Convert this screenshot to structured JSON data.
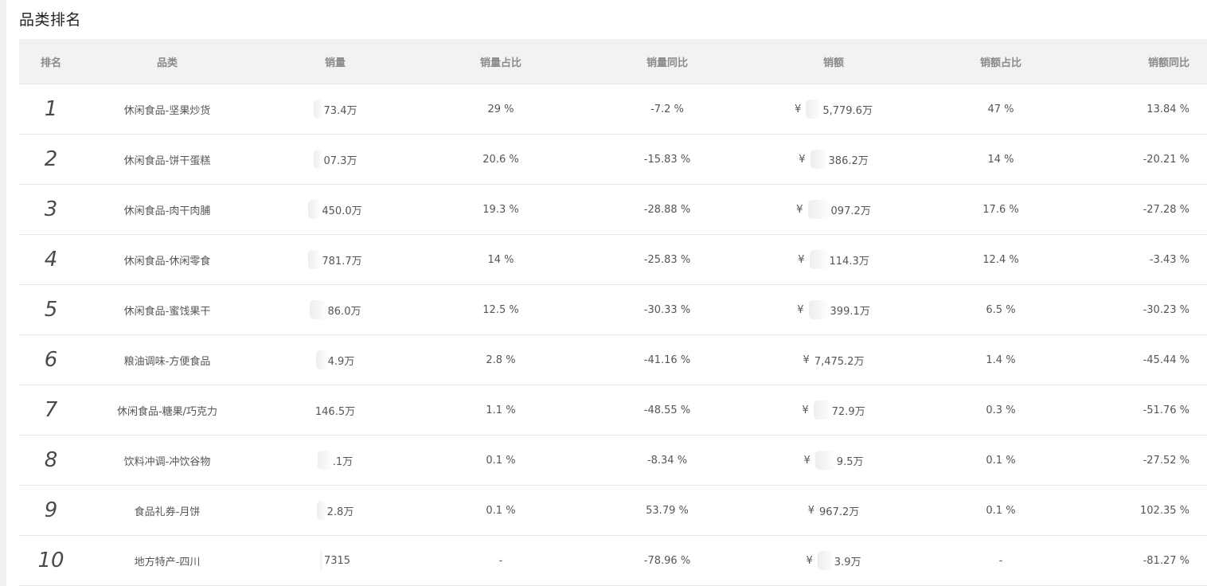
{
  "page": {
    "title": "品类排名"
  },
  "table": {
    "headers": {
      "rank": "排名",
      "category": "品类",
      "sales_volume": "销量",
      "volume_share": "销量占比",
      "volume_yoy": "销量同比",
      "sales_amount": "销额",
      "amount_share": "销额占比",
      "amount_yoy": "销额同比"
    },
    "currency_symbol": "¥",
    "rows": [
      {
        "rank": "1",
        "category": "休闲食品-坚果炒货",
        "volume": "73.4万",
        "volume_share": "29 %",
        "volume_yoy": "-7.2 %",
        "amount": "5,779.6万",
        "amount_share": "47 %",
        "amount_yoy": "13.84 %"
      },
      {
        "rank": "2",
        "category": "休闲食品-饼干蛋糕",
        "volume": "07.3万",
        "volume_share": "20.6 %",
        "volume_yoy": "-15.83 %",
        "amount": "386.2万",
        "amount_share": "14 %",
        "amount_yoy": "-20.21 %"
      },
      {
        "rank": "3",
        "category": "休闲食品-肉干肉脯",
        "volume": "450.0万",
        "volume_share": "19.3 %",
        "volume_yoy": "-28.88 %",
        "amount": "097.2万",
        "amount_share": "17.6 %",
        "amount_yoy": "-27.28 %"
      },
      {
        "rank": "4",
        "category": "休闲食品-休闲零食",
        "volume": "781.7万",
        "volume_share": "14 %",
        "volume_yoy": "-25.83 %",
        "amount": "114.3万",
        "amount_share": "12.4 %",
        "amount_yoy": "-3.43 %"
      },
      {
        "rank": "5",
        "category": "休闲食品-蜜饯果干",
        "volume": "86.0万",
        "volume_share": "12.5 %",
        "volume_yoy": "-30.33 %",
        "amount": "399.1万",
        "amount_share": "6.5 %",
        "amount_yoy": "-30.23 %"
      },
      {
        "rank": "6",
        "category": "粮油调味-方便食品",
        "volume": "4.9万",
        "volume_share": "2.8 %",
        "volume_yoy": "-41.16 %",
        "amount": "7,475.2万",
        "amount_share": "1.4 %",
        "amount_yoy": "-45.44 %"
      },
      {
        "rank": "7",
        "category": "休闲食品-糖果/巧克力",
        "volume": "146.5万",
        "volume_share": "1.1 %",
        "volume_yoy": "-48.55 %",
        "amount": "72.9万",
        "amount_share": "0.3 %",
        "amount_yoy": "-51.76 %"
      },
      {
        "rank": "8",
        "category": "饮料冲调-冲饮谷物",
        "volume": ".1万",
        "volume_share": "0.1 %",
        "volume_yoy": "-8.34 %",
        "amount": "9.5万",
        "amount_share": "0.1 %",
        "amount_yoy": "-27.52 %"
      },
      {
        "rank": "9",
        "category": "食品礼券-月饼",
        "volume": "2.8万",
        "volume_share": "0.1 %",
        "volume_yoy": "53.79 %",
        "amount": "967.2万",
        "amount_share": "0.1 %",
        "amount_yoy": "102.35 %"
      },
      {
        "rank": "10",
        "category": "地方特产-四川",
        "volume": "7315",
        "volume_share": "-",
        "volume_yoy": "-78.96 %",
        "amount": "3.9万",
        "amount_share": "-",
        "amount_yoy": "-81.27 %"
      }
    ]
  }
}
